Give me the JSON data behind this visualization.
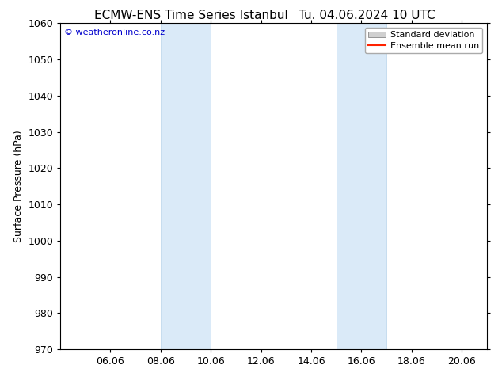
{
  "title_left": "ECMW-ENS Time Series Istanbul",
  "title_right": "Tu. 04.06.2024 10 UTC",
  "ylabel": "Surface Pressure (hPa)",
  "ylim": [
    970,
    1060
  ],
  "yticks": [
    970,
    980,
    990,
    1000,
    1010,
    1020,
    1030,
    1040,
    1050,
    1060
  ],
  "xtick_labels": [
    "06.06",
    "08.06",
    "10.06",
    "12.06",
    "14.06",
    "16.06",
    "18.06",
    "20.06"
  ],
  "xtick_positions": [
    2,
    4,
    6,
    8,
    10,
    12,
    14,
    16
  ],
  "xlim_start": 0,
  "xlim_end": 17,
  "shade_bands": [
    {
      "x_start": 4,
      "x_end": 6
    },
    {
      "x_start": 11,
      "x_end": 13
    }
  ],
  "shade_color": "#daeaf8",
  "shade_edge_color": "#b8d4ea",
  "copyright_text": "© weatheronline.co.nz",
  "copyright_color": "#0000cc",
  "background_color": "#ffffff",
  "legend_std_color": "#d0d0d0",
  "legend_mean_color": "#ff2200",
  "title_fontsize": 11,
  "axis_label_fontsize": 9,
  "tick_fontsize": 9,
  "legend_fontsize": 8
}
